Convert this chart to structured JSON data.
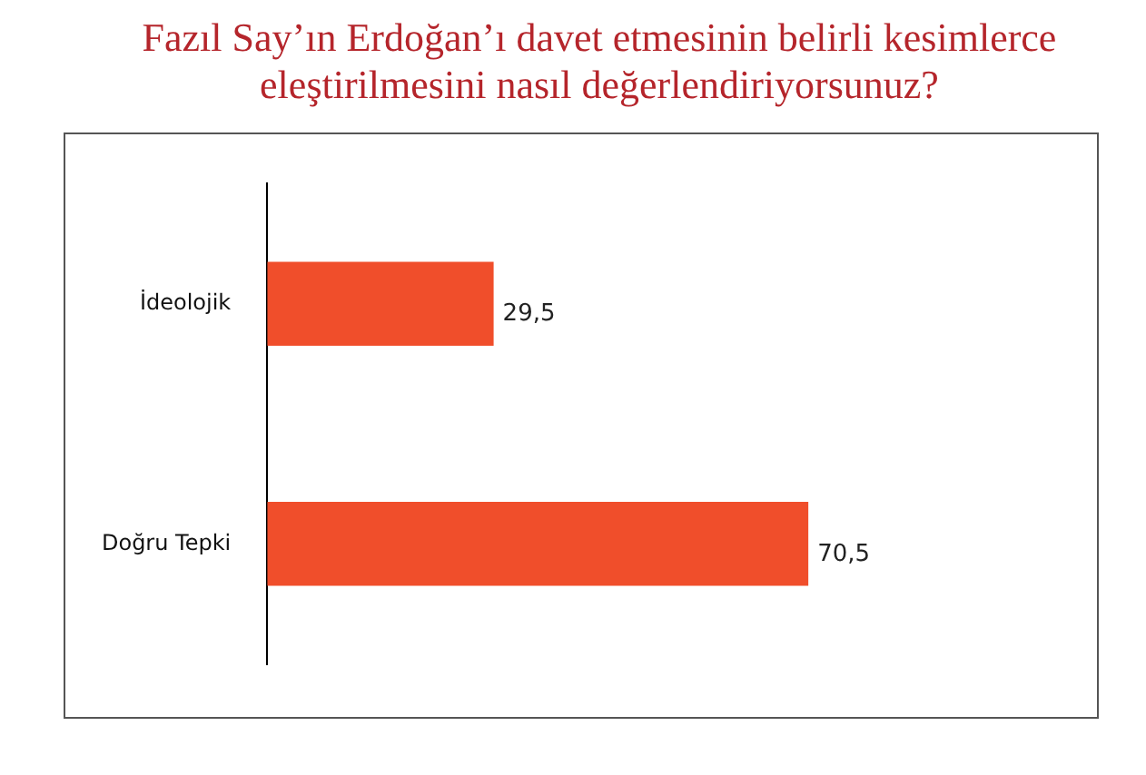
{
  "chart_data": {
    "type": "bar",
    "orientation": "horizontal",
    "title": "Fazıl Say’ın Erdoğan’ı davet etmesinin  belirli kesimlerce eleştirilmesini nasıl değerlendiriyorsunuz?",
    "categories": [
      "İdeolojik",
      "Doğru Tepki"
    ],
    "values": [
      29.5,
      70.5
    ],
    "color": "#f04e2b",
    "value_labels": [
      "29,5",
      "70,5"
    ]
  }
}
